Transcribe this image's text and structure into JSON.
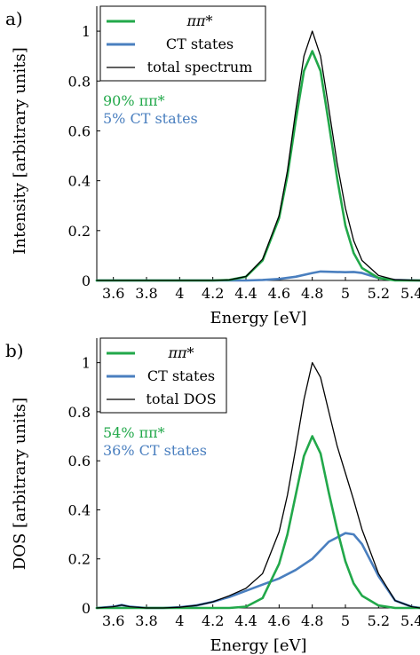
{
  "colors": {
    "pipi": "#22a84a",
    "ct": "#4a7fbf",
    "total": "#000000"
  },
  "chart_data": [
    {
      "type": "line",
      "panel_label": "a)",
      "xlabel": "Energy [eV]",
      "ylabel": "Intensity [arbitrary units]",
      "xlim": [
        3.5,
        5.45
      ],
      "ylim": [
        0,
        1.1
      ],
      "x_ticks": [
        "3.6",
        "3.8",
        "4",
        "4.2",
        "4.4",
        "4.6",
        "4.8",
        "5",
        "5.2",
        "5.4"
      ],
      "y_ticks": [
        "0",
        "0.2",
        "0.4",
        "0.6",
        "0.8",
        "1"
      ],
      "legend": {
        "position": "top-left",
        "entries": [
          "ππ*",
          "CT states",
          "total spectrum"
        ]
      },
      "annotations": [
        "90% ππ*",
        "5% CT states"
      ],
      "series": [
        {
          "name": "ππ*",
          "color": "#22a84a",
          "x": [
            3.5,
            4.2,
            4.3,
            4.4,
            4.5,
            4.6,
            4.65,
            4.7,
            4.75,
            4.8,
            4.85,
            4.9,
            4.95,
            5.0,
            5.05,
            5.1,
            5.2,
            5.3,
            5.45
          ],
          "y": [
            0,
            0,
            0.002,
            0.015,
            0.08,
            0.25,
            0.42,
            0.64,
            0.84,
            0.92,
            0.84,
            0.63,
            0.41,
            0.22,
            0.11,
            0.05,
            0.01,
            0,
            0
          ]
        },
        {
          "name": "CT states",
          "color": "#4a7fbf",
          "x": [
            3.5,
            4.4,
            4.5,
            4.6,
            4.7,
            4.8,
            4.85,
            4.9,
            5.0,
            5.05,
            5.1,
            5.2,
            5.3,
            5.45
          ],
          "y": [
            0,
            0,
            0.002,
            0.006,
            0.015,
            0.03,
            0.036,
            0.035,
            0.033,
            0.034,
            0.03,
            0.01,
            0.002,
            0
          ]
        },
        {
          "name": "total spectrum",
          "color": "#000000",
          "x": [
            3.5,
            4.2,
            4.3,
            4.4,
            4.5,
            4.6,
            4.65,
            4.7,
            4.75,
            4.8,
            4.85,
            4.9,
            4.95,
            5.0,
            5.05,
            5.1,
            5.2,
            5.3,
            5.45
          ],
          "y": [
            0,
            0,
            0.002,
            0.016,
            0.085,
            0.26,
            0.44,
            0.68,
            0.9,
            1.0,
            0.9,
            0.69,
            0.47,
            0.29,
            0.16,
            0.08,
            0.02,
            0.003,
            0
          ]
        }
      ]
    },
    {
      "type": "line",
      "panel_label": "b)",
      "xlabel": "Energy [eV]",
      "ylabel": "DOS [arbitrary units]",
      "xlim": [
        3.5,
        5.45
      ],
      "ylim": [
        0,
        1.1
      ],
      "x_ticks": [
        "3.6",
        "3.8",
        "4",
        "4.2",
        "4.4",
        "4.6",
        "4.8",
        "5",
        "5.2",
        "5.4"
      ],
      "y_ticks": [
        "0",
        "0.2",
        "0.4",
        "0.6",
        "0.8",
        "1"
      ],
      "legend": {
        "position": "top-left",
        "entries": [
          "ππ*",
          "CT states",
          "total DOS"
        ]
      },
      "annotations": [
        "54% ππ*",
        "36% CT states"
      ],
      "series": [
        {
          "name": "ππ*",
          "color": "#22a84a",
          "x": [
            3.5,
            4.3,
            4.4,
            4.5,
            4.6,
            4.65,
            4.7,
            4.75,
            4.8,
            4.85,
            4.9,
            4.95,
            5.0,
            5.05,
            5.1,
            5.2,
            5.3,
            5.45
          ],
          "y": [
            0,
            0,
            0.005,
            0.04,
            0.18,
            0.3,
            0.46,
            0.62,
            0.7,
            0.63,
            0.47,
            0.32,
            0.19,
            0.1,
            0.05,
            0.01,
            0,
            0
          ]
        },
        {
          "name": "CT states",
          "color": "#4a7fbf",
          "x": [
            3.5,
            3.6,
            3.65,
            3.7,
            3.8,
            3.9,
            4.0,
            4.1,
            4.2,
            4.3,
            4.4,
            4.5,
            4.6,
            4.7,
            4.8,
            4.9,
            5.0,
            5.05,
            5.1,
            5.2,
            5.3,
            5.4,
            5.45
          ],
          "y": [
            0,
            0.005,
            0.012,
            0.005,
            0,
            0,
            0.003,
            0.01,
            0.025,
            0.045,
            0.07,
            0.095,
            0.12,
            0.155,
            0.2,
            0.27,
            0.305,
            0.3,
            0.26,
            0.13,
            0.03,
            0.005,
            0
          ]
        },
        {
          "name": "total DOS",
          "color": "#000000",
          "x": [
            3.5,
            3.6,
            3.65,
            3.7,
            3.8,
            3.9,
            4.0,
            4.1,
            4.2,
            4.3,
            4.4,
            4.5,
            4.6,
            4.65,
            4.7,
            4.75,
            4.8,
            4.85,
            4.9,
            4.95,
            5.0,
            5.05,
            5.1,
            5.2,
            5.3,
            5.4,
            5.45
          ],
          "y": [
            0,
            0.005,
            0.012,
            0.005,
            0,
            0,
            0.003,
            0.01,
            0.025,
            0.05,
            0.08,
            0.14,
            0.31,
            0.46,
            0.65,
            0.85,
            1.0,
            0.94,
            0.8,
            0.66,
            0.55,
            0.44,
            0.32,
            0.14,
            0.03,
            0.005,
            0
          ]
        }
      ]
    }
  ]
}
